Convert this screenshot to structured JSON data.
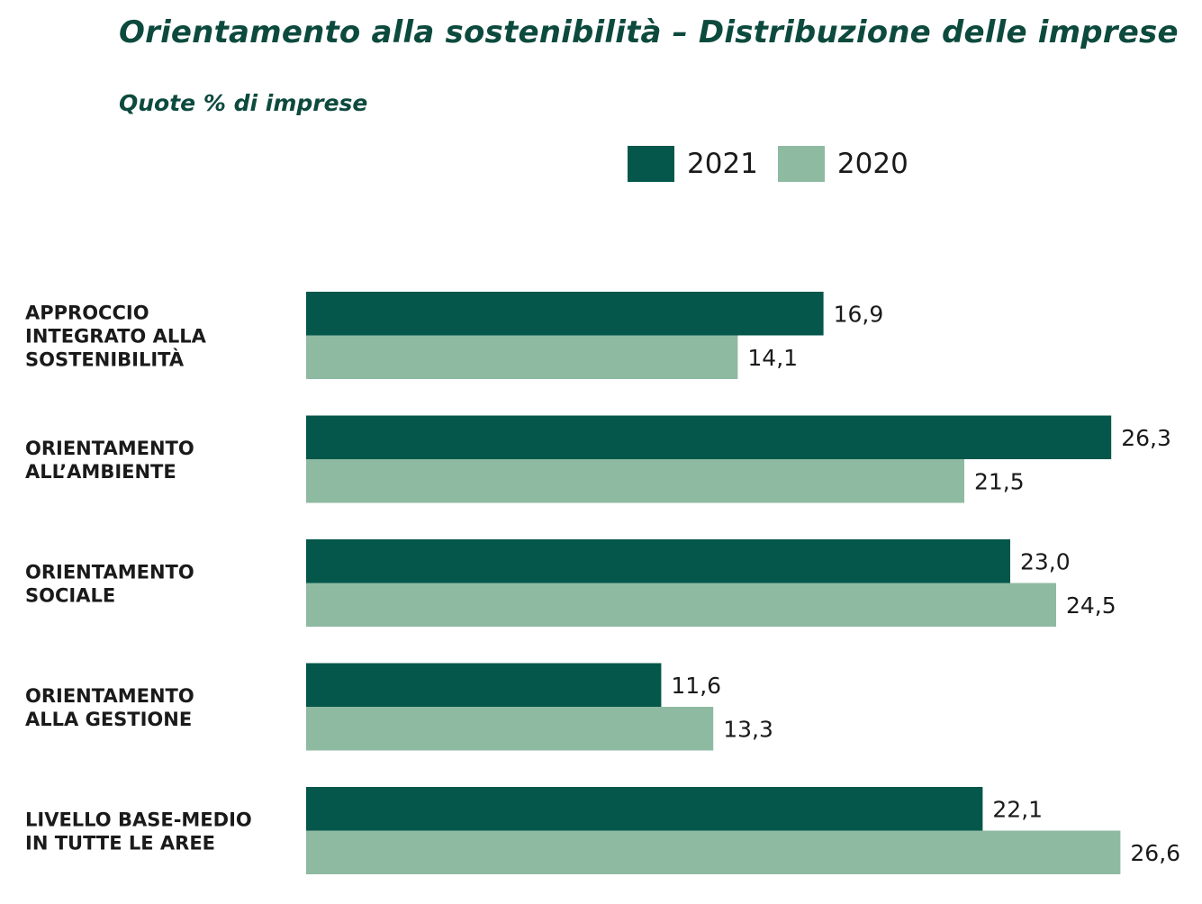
{
  "chart_data": {
    "type": "bar",
    "orientation": "horizontal",
    "title": "Orientamento alla sostenibilità – Distribuzione delle imprese",
    "subtitle": "Quote % di imprese",
    "xlabel": "",
    "ylabel": "",
    "grid": false,
    "legend_position": "top-right",
    "categories": [
      [
        "APPROCCIO",
        "INTEGRATO ALLA",
        "SOSTENIBILITÀ"
      ],
      [
        "ORIENTAMENTO",
        "ALL’AMBIENTE"
      ],
      [
        "ORIENTAMENTO",
        "SOCIALE"
      ],
      [
        "ORIENTAMENTO",
        "ALLA GESTIONE"
      ],
      [
        "LIVELLO BASE-MEDIO",
        "IN TUTTE LE AREE"
      ]
    ],
    "series": [
      {
        "name": "2021",
        "color": "#04574a",
        "values": [
          16.9,
          26.3,
          23.0,
          11.6,
          22.1
        ],
        "labels": [
          "16,9",
          "26,3",
          "23,0",
          "11,6",
          "22,1"
        ]
      },
      {
        "name": "2020",
        "color": "#8fbaa2",
        "values": [
          14.1,
          21.5,
          24.5,
          13.3,
          26.6
        ],
        "labels": [
          "14,1",
          "21,5",
          "24,5",
          "13,3",
          "26,6"
        ]
      }
    ]
  }
}
